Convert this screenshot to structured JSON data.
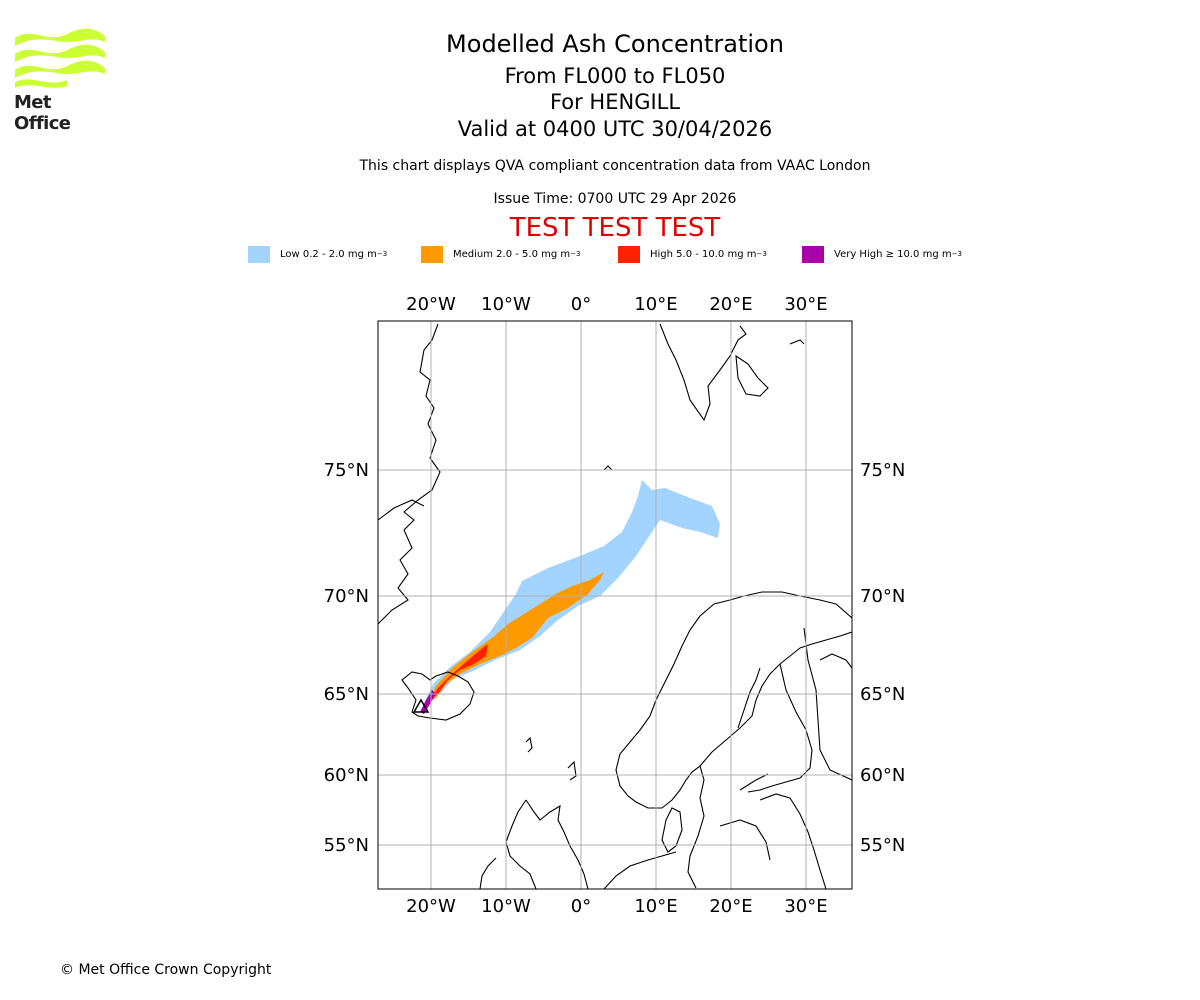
{
  "header": {
    "title": "Modelled Ash Concentration",
    "level_range": "From FL000 to FL050",
    "location": "For HENGILL",
    "valid": "Valid at 0400 UTC 30/04/2026",
    "note": "This chart displays QVA compliant concentration data from VAAC London",
    "issue_time": "Issue Time: 0700 UTC 29 Apr 2026",
    "test_banner": "TEST TEST TEST"
  },
  "logo": {
    "text": "Met Office",
    "color": "#ccff33"
  },
  "legend": [
    {
      "label": "Low 0.2 - 2.0 mg m",
      "sup": "−3",
      "color": "#a3d3ff"
    },
    {
      "label": "Medium 2.0 - 5.0 mg m",
      "sup": "−3",
      "color": "#ff9900"
    },
    {
      "label": "High 5.0 - 10.0 mg m",
      "sup": "−3",
      "color": "#ff2200"
    },
    {
      "label": "Very High  ≥  10.0 mg m",
      "sup": "−3",
      "color": "#aa00aa"
    }
  ],
  "map": {
    "lon_labels": [
      "20°W",
      "10°W",
      "0°",
      "10°E",
      "20°E",
      "30°E"
    ],
    "lat_labels": [
      "75°N",
      "70°N",
      "65°N",
      "60°N",
      "55°N"
    ]
  },
  "footer": {
    "copyright": "© Met Office Crown Copyright"
  }
}
